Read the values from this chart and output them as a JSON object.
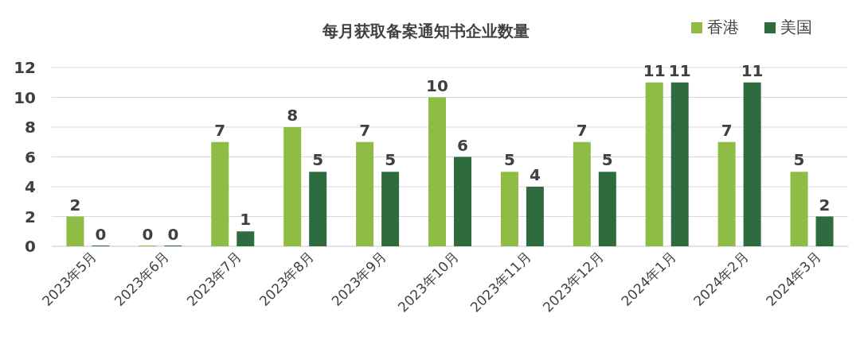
{
  "chart_data": {
    "type": "bar",
    "title": "每月获取备案通知书企业数量",
    "categories": [
      "2023年5月",
      "2023年6月",
      "2023年7月",
      "2023年8月",
      "2023年9月",
      "2023年10月",
      "2023年11月",
      "2023年12月",
      "2024年1月",
      "2024年2月",
      "2024年3月"
    ],
    "series": [
      {
        "name": "香港",
        "color": "#8fbc45",
        "values": [
          2,
          0,
          7,
          8,
          7,
          10,
          5,
          7,
          11,
          7,
          5
        ]
      },
      {
        "name": "美国",
        "color": "#2e6b3e",
        "values": [
          0,
          0,
          1,
          5,
          5,
          6,
          4,
          5,
          11,
          11,
          2
        ]
      }
    ],
    "ylim": [
      0,
      12
    ],
    "yticks": [
      0,
      2,
      4,
      6,
      8,
      10,
      12
    ],
    "grid": "y",
    "legend": "top right",
    "data_labels": true
  }
}
